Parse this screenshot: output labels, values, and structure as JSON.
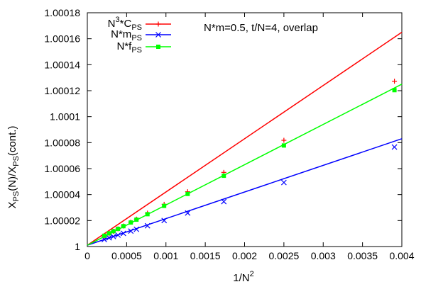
{
  "chart_data": {
    "type": "line",
    "xlabel": "1/N",
    "xlabel_sup": "2",
    "ylabel_parts": [
      "X",
      "PS",
      "(N)/X",
      "PS",
      "(cont.)"
    ],
    "annotation": "N*m=0.5, t/N=4, overlap",
    "xlim": [
      0,
      0.004
    ],
    "ylim": [
      1,
      1.00018
    ],
    "x_ticks": [
      0,
      0.0005,
      0.001,
      0.0015,
      0.002,
      0.0025,
      0.003,
      0.0035,
      0.004
    ],
    "x_tick_labels": [
      "0",
      "0.0005",
      "0.001",
      "0.0015",
      "0.002",
      "0.0025",
      "0.003",
      "0.0035",
      "0.004"
    ],
    "y_ticks": [
      1,
      1.00002,
      1.00004,
      1.00006,
      1.00008,
      1.0001,
      1.00012,
      1.00014,
      1.00016,
      1.00018
    ],
    "y_tick_labels": [
      "1",
      "1.00002",
      "1.00004",
      "1.00006",
      "1.00008",
      "1.0001",
      "1.00012",
      "1.00014",
      "1.00016",
      "1.00018"
    ],
    "grid": false,
    "legend_position": "top-left",
    "x": [
      0.000216,
      0.000277,
      0.000331,
      0.00039,
      0.000459,
      0.000553,
      0.000625,
      0.000765,
      0.000977,
      0.001276,
      0.001736,
      0.0025,
      0.003906
    ],
    "series": [
      {
        "legend_parts": [
          "N",
          "3",
          "*C",
          "PS"
        ],
        "color": "#ff0000",
        "marker": "plus",
        "values": [
          1.000008,
          1.0000099,
          1.0000117,
          1.0000136,
          1.0000158,
          1.0000188,
          1.0000211,
          1.0000257,
          1.0000325,
          1.0000422,
          1.0000571,
          1.0000818,
          1.0001273
        ],
        "fit": [
          [
            0,
            1.000001
          ],
          [
            0.004,
            1.000165
          ]
        ]
      },
      {
        "legend_parts": [
          "N",
          "",
          "*m",
          "PS"
        ],
        "color": "#0000ff",
        "marker": "cross",
        "values": [
          1.0000054,
          1.0000067,
          1.0000077,
          1.0000088,
          1.0000101,
          1.0000119,
          1.0000133,
          1.000016,
          1.00002,
          1.0000258,
          1.0000346,
          1.0000493,
          1.0000766
        ],
        "fit": [
          [
            0,
            1.000001
          ],
          [
            0.004,
            1.000083
          ]
        ]
      },
      {
        "legend_parts": [
          "N",
          "",
          "*f",
          "PS"
        ],
        "color": "#00ff00",
        "marker": "square",
        "values": [
          1.0000083,
          1.0000102,
          1.0000118,
          1.0000136,
          1.0000157,
          1.0000185,
          1.0000207,
          1.0000249,
          1.0000313,
          1.0000405,
          1.0000545,
          1.0000778,
          1.0001204
        ],
        "fit": [
          [
            0,
            1.000001
          ],
          [
            0.004,
            1.000125
          ]
        ]
      }
    ]
  }
}
